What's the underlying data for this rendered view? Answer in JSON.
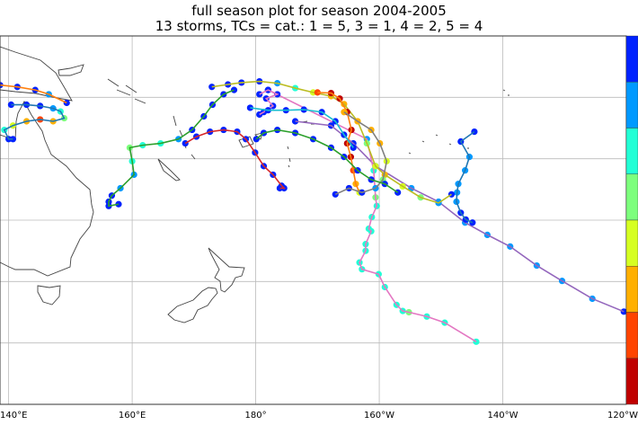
{
  "title_line1": "full season plot for season 2004-2005",
  "title_line2": "13 storms, TCs = cat.: 1 = 5, 3 = 1, 4 = 2, 5 = 4",
  "map": {
    "lon_range": [
      138.6,
      240
    ],
    "lat_range": [
      0,
      -60
    ],
    "grid": true,
    "lon_ticks": [
      {
        "lon": 140,
        "label": "140°E"
      },
      {
        "lon": 160,
        "label": "160°E"
      },
      {
        "lon": 180,
        "label": "180°"
      },
      {
        "lon": 200,
        "label": "160°W"
      },
      {
        "lon": 220,
        "label": "140°W"
      },
      {
        "lon": 240,
        "label": "120°W"
      }
    ],
    "lat_gridlines": [
      -10,
      -20,
      -30,
      -40,
      -50
    ]
  },
  "colorbar": {
    "position": "right",
    "colors": [
      "#0022ff",
      "#0099ff",
      "#22ffd6",
      "#7dff7d",
      "#d6ff22",
      "#ffb000",
      "#ff4400",
      "#c00000"
    ]
  },
  "storms": [
    {
      "line": "#9467bd",
      "points": [
        [
          186.4,
          -13.9,
          0
        ],
        [
          192.2,
          -14.6,
          0
        ],
        [
          195.8,
          -17.5,
          0
        ],
        [
          199.4,
          -21.2,
          1
        ],
        [
          205.2,
          -24.8,
          1
        ],
        [
          209.6,
          -27,
          1
        ],
        [
          213.9,
          -30.4,
          1
        ],
        [
          217.5,
          -32.4,
          1
        ],
        [
          221.2,
          -34.3,
          1
        ],
        [
          225.5,
          -37.4,
          1
        ],
        [
          229.6,
          -39.9,
          1
        ],
        [
          234.5,
          -42.8,
          1
        ],
        [
          239.6,
          -44.9,
          0
        ]
      ]
    },
    {
      "line": "#1f77b4",
      "points": [
        [
          215.4,
          -15.6,
          0
        ],
        [
          213.2,
          -17.2,
          0
        ],
        [
          214.6,
          -19.7,
          1
        ],
        [
          213.9,
          -21.9,
          1
        ],
        [
          212.8,
          -24.1,
          1
        ],
        [
          212.6,
          -25.5,
          1
        ],
        [
          212.5,
          -27,
          1
        ],
        [
          213.2,
          -28.8,
          0
        ],
        [
          214,
          -29.9,
          0
        ],
        [
          215.1,
          -30.4,
          0
        ]
      ]
    },
    {
      "line": "#e377c2",
      "points": [
        [
          182,
          -8.8,
          0
        ],
        [
          198,
          -16.8,
          1
        ],
        [
          199.1,
          -21.9,
          2
        ],
        [
          199.4,
          -26.3,
          3
        ],
        [
          199.6,
          -27.7,
          2
        ],
        [
          198.8,
          -29.5,
          2
        ],
        [
          198.3,
          -31.4,
          2
        ],
        [
          198.7,
          -31.8,
          2
        ],
        [
          197.8,
          -33.9,
          2
        ],
        [
          197.8,
          -35,
          2
        ],
        [
          196.8,
          -36.9,
          2
        ],
        [
          197.2,
          -38,
          2
        ],
        [
          199.9,
          -38.8,
          2
        ],
        [
          200.9,
          -40.9,
          2
        ],
        [
          202.8,
          -43.8,
          2
        ],
        [
          203.8,
          -44.8,
          2
        ],
        [
          204.8,
          -45,
          3
        ],
        [
          207.7,
          -45.7,
          2
        ],
        [
          210.6,
          -46.7,
          2
        ],
        [
          215.7,
          -49.8,
          2
        ]
      ]
    },
    {
      "line": "#bcbd22",
      "points": [
        [
          172.9,
          -8.3,
          0
        ],
        [
          175.5,
          -7.9,
          0
        ],
        [
          177.7,
          -7.6,
          0
        ],
        [
          180.6,
          -7.4,
          0
        ],
        [
          183.5,
          -7.7,
          1
        ],
        [
          186.4,
          -8.5,
          2
        ],
        [
          189.3,
          -9.2,
          4
        ],
        [
          192.2,
          -9.8,
          5
        ],
        [
          194.3,
          -11.1,
          5
        ],
        [
          196.5,
          -13.9,
          4
        ],
        [
          198,
          -17.5,
          3
        ],
        [
          199.4,
          -21.2,
          4
        ],
        [
          200.9,
          -22.6,
          5
        ],
        [
          203.8,
          -24.5,
          4
        ],
        [
          206.7,
          -26.3,
          3
        ],
        [
          209.6,
          -27.2,
          1
        ],
        [
          211.7,
          -25.8,
          0
        ]
      ]
    },
    {
      "line": "#ff7f0e",
      "points": [
        [
          190,
          -9.2,
          6
        ],
        [
          192.2,
          -9.3,
          7
        ],
        [
          193.6,
          -10.2,
          7
        ],
        [
          194.8,
          -12.4,
          7
        ],
        [
          195.5,
          -15.3,
          7
        ],
        [
          194.8,
          -17.5,
          7
        ],
        [
          195.4,
          -19.7,
          7
        ],
        [
          195.8,
          -21.9,
          6
        ],
        [
          196.2,
          -24.1,
          5
        ],
        [
          196.8,
          -25.5,
          4
        ]
      ]
    },
    {
      "line": "#7f7f7f",
      "points": [
        [
          194.3,
          -12.4,
          5
        ],
        [
          196.5,
          -13.9,
          5
        ],
        [
          198.7,
          -15.3,
          5
        ],
        [
          200.1,
          -17.5,
          5
        ],
        [
          201.2,
          -20.4,
          4
        ],
        [
          200.6,
          -23.4,
          3
        ],
        [
          199.4,
          -24.8,
          1
        ],
        [
          197.2,
          -25.5,
          0
        ],
        [
          195.1,
          -24.8,
          0
        ],
        [
          192.9,
          -25.8,
          0
        ]
      ]
    },
    {
      "line": "#2ca02c",
      "points": [
        [
          180.1,
          -16.8,
          0
        ],
        [
          181.3,
          -15.8,
          0
        ],
        [
          183.5,
          -15.3,
          0
        ],
        [
          186.4,
          -15.8,
          0
        ],
        [
          189.3,
          -16.8,
          0
        ],
        [
          192.2,
          -18.2,
          0
        ],
        [
          194.3,
          -19.7,
          0
        ],
        [
          196.5,
          -21.9,
          0
        ],
        [
          198.7,
          -23.4,
          0
        ],
        [
          200.9,
          -24.1,
          0
        ],
        [
          203,
          -25.5,
          0
        ]
      ]
    },
    {
      "line": "#d62728",
      "points": [
        [
          168.6,
          -17.5,
          0
        ],
        [
          170.4,
          -16.4,
          0
        ],
        [
          172.6,
          -15.6,
          0
        ],
        [
          174.8,
          -15.3,
          0
        ],
        [
          177,
          -15.6,
          0
        ],
        [
          178.4,
          -16.8,
          0
        ],
        [
          179.9,
          -19,
          0
        ],
        [
          181.3,
          -21.2,
          0
        ],
        [
          182.8,
          -22.6,
          0
        ],
        [
          184.2,
          -24.4,
          0
        ],
        [
          184.6,
          -24.8,
          0
        ],
        [
          183.9,
          -24.8,
          0
        ]
      ]
    },
    {
      "line": "#2ca02c",
      "points": [
        [
          176.5,
          -8.8,
          0
        ],
        [
          174.8,
          -9.5,
          0
        ],
        [
          173,
          -11.2,
          0
        ],
        [
          171.6,
          -13.1,
          0
        ],
        [
          169.7,
          -15.3,
          0
        ],
        [
          167.5,
          -16.8,
          1
        ],
        [
          164.6,
          -17.5,
          2
        ],
        [
          161.7,
          -17.8,
          2
        ],
        [
          159.6,
          -18.2,
          3
        ],
        [
          160,
          -20.4,
          2
        ],
        [
          160.3,
          -22.6,
          1
        ],
        [
          158.1,
          -24.8,
          1
        ],
        [
          156.7,
          -26,
          0
        ],
        [
          156.2,
          -27,
          0
        ],
        [
          156.2,
          -27.7,
          0
        ],
        [
          157.8,
          -27.4,
          0
        ]
      ]
    },
    {
      "line": "#e377c2",
      "points": [
        [
          180.6,
          -9.5,
          0
        ],
        [
          182,
          -8.8,
          0
        ],
        [
          183.5,
          -9.5,
          0
        ],
        [
          181.7,
          -10.2,
          0
        ],
        [
          182.8,
          -11.4,
          0
        ],
        [
          181.3,
          -12.4,
          0
        ],
        [
          180.6,
          -12.8,
          0
        ]
      ]
    },
    {
      "line": "#17becf",
      "points": [
        [
          179.1,
          -11.7,
          0
        ],
        [
          182,
          -12.1,
          0
        ],
        [
          184.9,
          -12.1,
          0
        ],
        [
          187.8,
          -12,
          0
        ],
        [
          190.7,
          -12.4,
          0
        ],
        [
          192.9,
          -13.9,
          0
        ],
        [
          194.3,
          -16.1,
          0
        ],
        [
          195.8,
          -18.2,
          0
        ]
      ]
    },
    {
      "line": "#ff7f0e",
      "points": [
        [
          138.6,
          -8,
          0
        ],
        [
          141.4,
          -8.3,
          0
        ],
        [
          144.3,
          -8.8,
          0
        ],
        [
          146.5,
          -9.5,
          1
        ],
        [
          149.4,
          -10.9,
          0
        ]
      ]
    },
    {
      "line": "#1f77b4",
      "points": [
        [
          140.4,
          -11.2,
          0
        ],
        [
          142.9,
          -11.2,
          0
        ],
        [
          145.1,
          -11.4,
          0
        ],
        [
          147.2,
          -11.8,
          1
        ],
        [
          148.4,
          -12.3,
          2
        ],
        [
          149,
          -13.4,
          3
        ],
        [
          147.2,
          -13.9,
          5
        ],
        [
          145.1,
          -13.6,
          6
        ],
        [
          142.9,
          -13.9,
          5
        ],
        [
          140.7,
          -14.6,
          4
        ],
        [
          139.3,
          -15.3,
          2
        ],
        [
          140,
          -16.8,
          0
        ],
        [
          140.7,
          -16.8,
          0
        ]
      ]
    }
  ]
}
